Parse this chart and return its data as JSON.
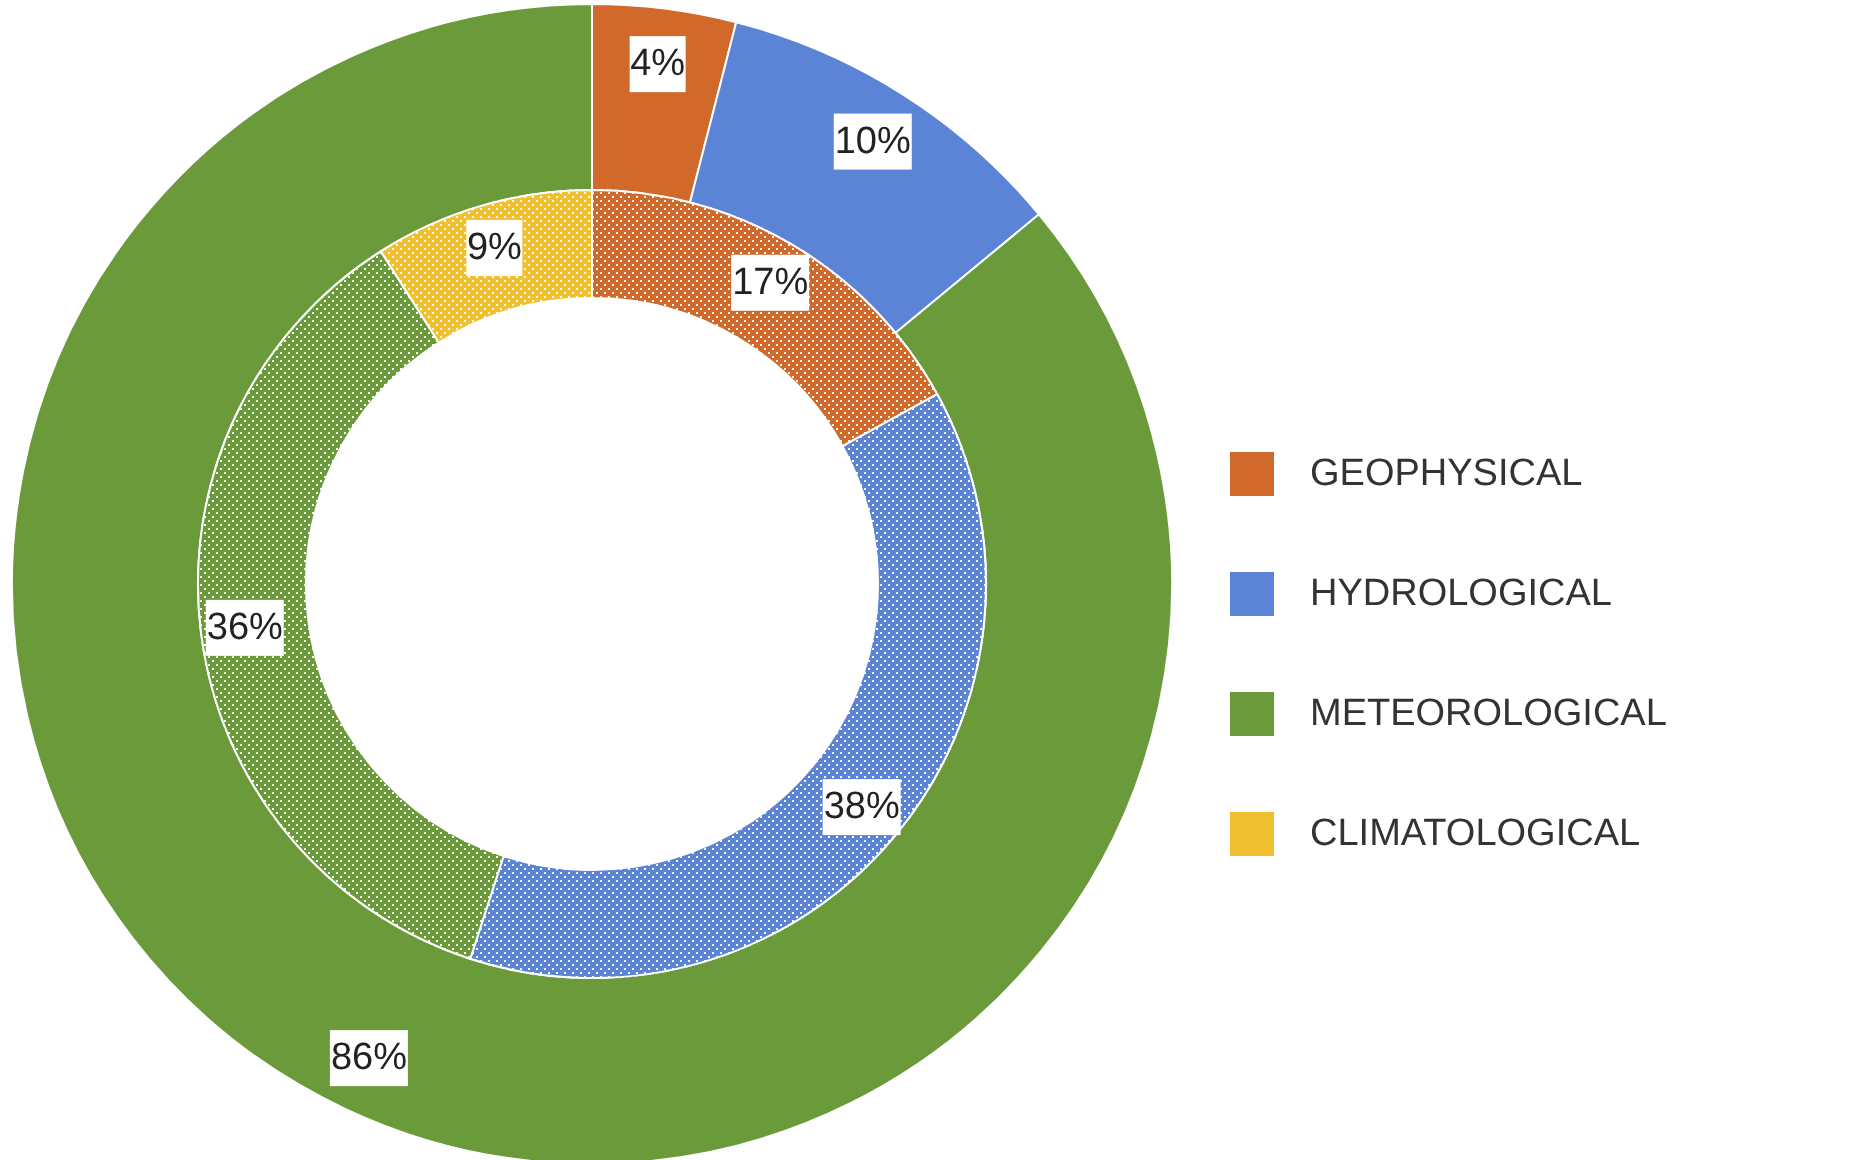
{
  "chart_data": {
    "type": "donut",
    "categories": [
      "GEOPHYSICAL",
      "HYDROLOGICAL",
      "METEOROLOGICAL",
      "CLIMATOLOGICAL"
    ],
    "colors": [
      "#d0692a",
      "#5b84d6",
      "#6a9a3a",
      "#f0c030"
    ],
    "series": [
      {
        "values": [
          4,
          10,
          86,
          null
        ],
        "value_labels": [
          "4%",
          "10%",
          "86%",
          null
        ]
      },
      {
        "values": [
          17,
          38,
          36,
          9
        ],
        "value_labels": [
          "17%",
          "38%",
          "36%",
          "9%"
        ]
      }
    ],
    "data_labels": true,
    "legend": "right"
  }
}
